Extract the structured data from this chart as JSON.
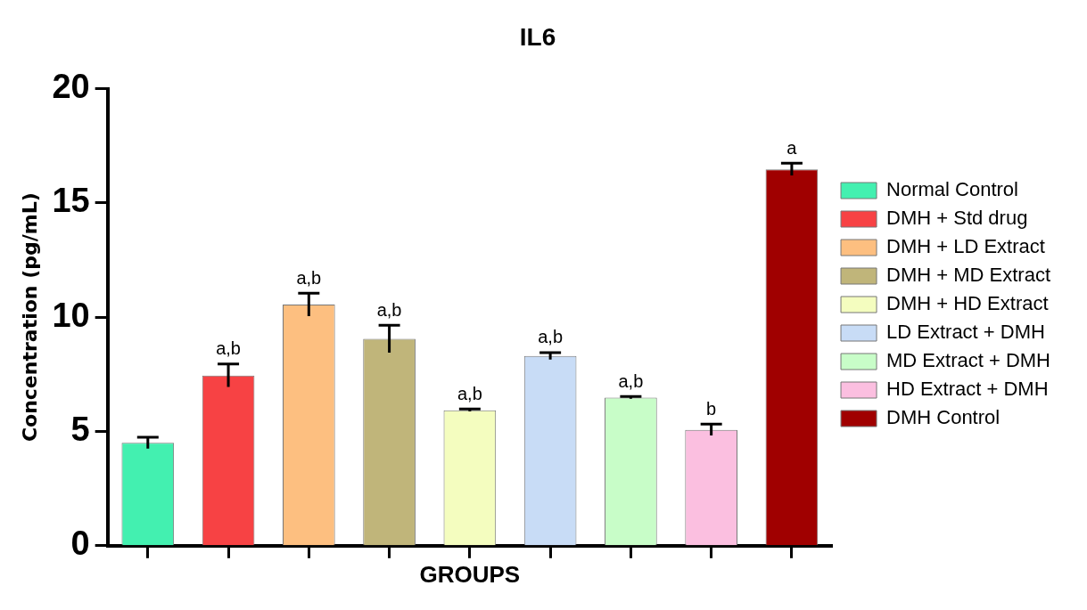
{
  "chart_data": {
    "type": "bar",
    "title": "IL6",
    "xlabel": "GROUPS",
    "ylabel": "Concentration (pg/mL)",
    "categories": [
      null,
      null,
      null,
      null,
      null,
      null,
      null,
      null,
      null
    ],
    "series": [
      {
        "name": "Normal Control",
        "color": "#43f0b0",
        "values": [
          4.5,
          null,
          null,
          null,
          null,
          null,
          null,
          null,
          null
        ],
        "errors": [
          0.25,
          null,
          null,
          null,
          null,
          null,
          null,
          null,
          null
        ]
      },
      {
        "name": "DMH + Std drug",
        "color": "#f74244",
        "values": [
          null,
          7.45,
          null,
          null,
          null,
          null,
          null,
          null,
          null
        ],
        "errors": [
          null,
          0.5,
          null,
          null,
          null,
          null,
          null,
          null,
          null
        ],
        "value_labels": [
          null,
          "a,b",
          null,
          null,
          null,
          null,
          null,
          null,
          null
        ]
      },
      {
        "name": "DMH + LD Extract",
        "color": "#fdbf80",
        "values": [
          null,
          null,
          10.55,
          null,
          null,
          null,
          null,
          null,
          null
        ],
        "errors": [
          null,
          null,
          0.5,
          null,
          null,
          null,
          null,
          null,
          null
        ],
        "value_labels": [
          null,
          null,
          "a,b",
          null,
          null,
          null,
          null,
          null,
          null
        ]
      },
      {
        "name": "DMH + MD Extract",
        "color": "#c0b57a",
        "values": [
          null,
          null,
          null,
          9.05,
          null,
          null,
          null,
          null,
          null
        ],
        "errors": [
          null,
          null,
          null,
          0.6,
          null,
          null,
          null,
          null,
          null
        ],
        "value_labels": [
          null,
          null,
          null,
          "a,b",
          null,
          null,
          null,
          null,
          null
        ]
      },
      {
        "name": "DMH + HD Extract",
        "color": "#f4fdbf",
        "values": [
          null,
          null,
          null,
          null,
          5.93,
          null,
          null,
          null,
          null
        ],
        "errors": [
          null,
          null,
          null,
          null,
          0.05,
          null,
          null,
          null,
          null
        ],
        "value_labels": [
          null,
          null,
          null,
          null,
          "a,b",
          null,
          null,
          null,
          null
        ]
      },
      {
        "name": "LD Extract + DMH",
        "color": "#c8dcf6",
        "values": [
          null,
          null,
          null,
          null,
          null,
          8.3,
          null,
          null,
          null
        ],
        "errors": [
          null,
          null,
          null,
          null,
          null,
          0.15,
          null,
          null,
          null
        ],
        "value_labels": [
          null,
          null,
          null,
          null,
          null,
          "a,b",
          null,
          null,
          null
        ]
      },
      {
        "name": "MD Extract + DMH",
        "color": "#c8fdc8",
        "values": [
          null,
          null,
          null,
          null,
          null,
          null,
          6.48,
          null,
          null
        ],
        "errors": [
          null,
          null,
          null,
          null,
          null,
          null,
          0.05,
          null,
          null
        ],
        "value_labels": [
          null,
          null,
          null,
          null,
          null,
          null,
          "a,b",
          null,
          null
        ]
      },
      {
        "name": "HD Extract + DMH",
        "color": "#fbbfe0",
        "values": [
          null,
          null,
          null,
          null,
          null,
          null,
          null,
          5.07,
          null
        ],
        "errors": [
          null,
          null,
          null,
          null,
          null,
          null,
          null,
          0.25,
          null
        ],
        "value_labels": [
          null,
          null,
          null,
          null,
          null,
          null,
          null,
          "b",
          null
        ]
      },
      {
        "name": "DMH Control",
        "color": "#a00000",
        "values": [
          null,
          null,
          null,
          null,
          null,
          null,
          null,
          null,
          16.47
        ],
        "errors": [
          null,
          null,
          null,
          null,
          null,
          null,
          null,
          null,
          0.27
        ],
        "value_labels": [
          null,
          null,
          null,
          null,
          null,
          null,
          null,
          null,
          "a"
        ]
      }
    ],
    "ylim": [
      0,
      20
    ],
    "yticks": [
      0,
      5,
      10,
      15,
      20
    ],
    "legend": "right",
    "tick_labels": "y"
  }
}
